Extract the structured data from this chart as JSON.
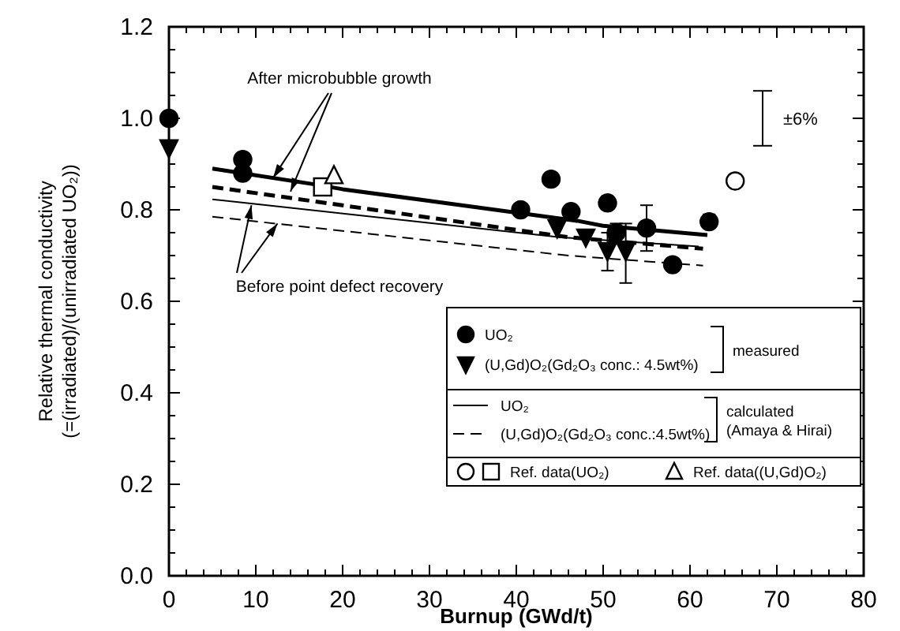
{
  "chart_data": {
    "type": "scatter",
    "xlabel": "Burnup (GWd/t)",
    "ylabel": "Relative thermal conductivity\n(=(irradiated)/(unirradiated UO₂))",
    "xlim": [
      0,
      80
    ],
    "ylim": [
      0,
      1.2
    ],
    "xticks": [
      0,
      10,
      20,
      30,
      40,
      50,
      60,
      70,
      80
    ],
    "yticks": [
      {
        "value": 0,
        "label": "0.0"
      },
      {
        "value": 0.2,
        "label": "0.2"
      },
      {
        "value": 0.4,
        "label": "0.4"
      },
      {
        "value": 0.6,
        "label": "0.6"
      },
      {
        "value": 0.8,
        "label": "0.8"
      },
      {
        "value": 1,
        "label": "1.0"
      },
      {
        "value": 1.2,
        "label": "1.2"
      }
    ],
    "grid": false,
    "legend": "bottom right",
    "annotations": [
      {
        "text": "After microbubble growth",
        "x": 12,
        "y": 0.87
      },
      {
        "text": "Before point defect recovery",
        "x": 9.5,
        "y": 0.81
      },
      "±6%",
      "measured",
      "calculated\n(Amaya & Hirai)"
    ],
    "series": [
      {
        "name": "UO₂",
        "marker": "circle",
        "color": "#000000",
        "x": [
          0,
          8.5,
          8.5,
          40.5,
          44,
          46.3,
          50.5,
          51.5,
          55,
          58,
          62.2
        ],
        "values": [
          1.0,
          0.91,
          0.88,
          0.8,
          0.867,
          0.796,
          0.815,
          0.75,
          0.76,
          0.68,
          0.774
        ],
        "errors": [
          null,
          null,
          null,
          null,
          null,
          null,
          null,
          [
            0.73,
            0.77
          ],
          [
            0.71,
            0.81
          ],
          null,
          [
            0.76,
            0.79
          ]
        ]
      },
      {
        "name": "(U,Gd)O₂(Gd₂O₃ conc.: 4.5wt%)",
        "marker": "triangle",
        "color": "#000000",
        "x": [
          0,
          44.7,
          48,
          50.5,
          52.6
        ],
        "values": [
          0.935,
          0.76,
          0.74,
          0.71,
          0.71
        ],
        "errors": [
          null,
          null,
          null,
          [
            0.667,
            0.75
          ],
          [
            0.64,
            0.77
          ]
        ]
      },
      {
        "name": "UO₂",
        "type": "line",
        "line_style": "solid",
        "color": "#000000",
        "x": [
          5,
          45,
          61
        ],
        "values": [
          0.823,
          0.74,
          0.72
        ]
      },
      {
        "name": "(U,Gd)O₂(Gd₂O₃ conc.:4.5wt%)",
        "type": "line",
        "line_style": "dashed",
        "color": "#000000",
        "x": [
          5,
          46,
          61.5
        ],
        "values": [
          0.785,
          0.7,
          0.678
        ]
      },
      {
        "marker": "circle",
        "color": "#ffffff",
        "x": [
          65.2
        ],
        "values": [
          0.863
        ]
      },
      {
        "name": "Ref. data(UO₂)",
        "marker": "square",
        "color": "#ffffff",
        "x": [
          17.7
        ],
        "values": [
          0.85
        ]
      },
      {
        "name": "Ref. data((U,Gd)O₂)",
        "marker": "triangle",
        "color": "#ffffff",
        "x": [
          19
        ],
        "values": [
          0.875
        ]
      },
      {
        "type": "line",
        "line_style": "solid",
        "color": "#000000",
        "x": [
          5,
          17,
          20,
          47,
          50,
          62
        ],
        "values": [
          0.89,
          0.855,
          0.845,
          0.776,
          0.765,
          0.745
        ]
      },
      {
        "type": "line",
        "line_style": "dashed",
        "color": "#000000",
        "x": [
          5,
          46,
          61.5
        ],
        "values": [
          0.85,
          0.74,
          0.715
        ]
      }
    ]
  }
}
